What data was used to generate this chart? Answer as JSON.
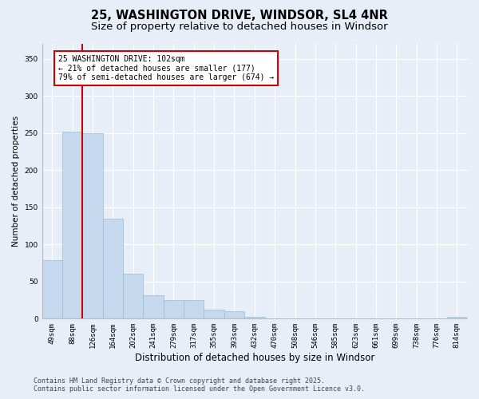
{
  "title": "25, WASHINGTON DRIVE, WINDSOR, SL4 4NR",
  "subtitle": "Size of property relative to detached houses in Windsor",
  "xlabel": "Distribution of detached houses by size in Windsor",
  "ylabel": "Number of detached properties",
  "bar_values": [
    79,
    252,
    250,
    135,
    61,
    32,
    25,
    25,
    12,
    10,
    2,
    0,
    0,
    0,
    0,
    0,
    0,
    0,
    0,
    0,
    2
  ],
  "bar_labels": [
    "49sqm",
    "88sqm",
    "126sqm",
    "164sqm",
    "202sqm",
    "241sqm",
    "279sqm",
    "317sqm",
    "355sqm",
    "393sqm",
    "432sqm",
    "470sqm",
    "508sqm",
    "546sqm",
    "585sqm",
    "623sqm",
    "661sqm",
    "699sqm",
    "738sqm",
    "776sqm",
    "814sqm"
  ],
  "bar_color": "#c5d8ed",
  "bar_edge_color": "#9bbbd4",
  "vline_color": "#cc0000",
  "annotation_box_text": "25 WASHINGTON DRIVE: 102sqm\n← 21% of detached houses are smaller (177)\n79% of semi-detached houses are larger (674) →",
  "annotation_box_facecolor": "#ffffff",
  "annotation_box_edgecolor": "#cc0000",
  "ylim": [
    0,
    370
  ],
  "yticks": [
    0,
    50,
    100,
    150,
    200,
    250,
    300,
    350
  ],
  "bg_color": "#e8eef8",
  "plot_bg_color": "#e8eef8",
  "footer_line1": "Contains HM Land Registry data © Crown copyright and database right 2025.",
  "footer_line2": "Contains public sector information licensed under the Open Government Licence v3.0.",
  "title_fontsize": 10.5,
  "subtitle_fontsize": 9.5,
  "xlabel_fontsize": 8.5,
  "ylabel_fontsize": 7.5,
  "tick_fontsize": 6.5,
  "footer_fontsize": 6.0,
  "annot_fontsize": 7.0
}
